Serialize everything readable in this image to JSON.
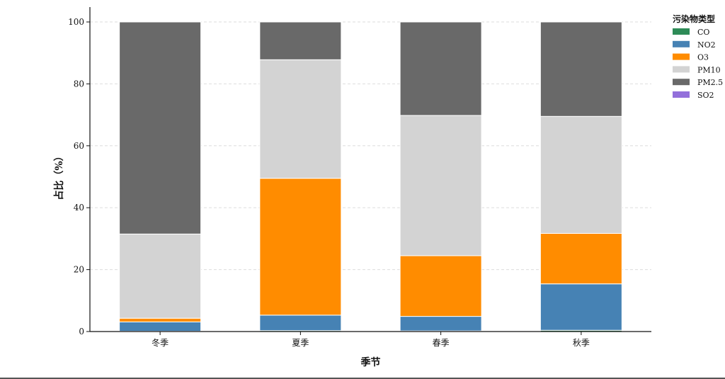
{
  "chart_data": {
    "type": "bar",
    "stacked": true,
    "title": "",
    "xlabel": "季节",
    "ylabel": "占比（%）",
    "categories": [
      "冬季",
      "夏季",
      "春季",
      "秋季"
    ],
    "ylim": [
      0,
      100
    ],
    "yticks": [
      0,
      20,
      40,
      60,
      80,
      100
    ],
    "grid": "horizontal dashed",
    "legend_title": "污染物类型",
    "legend_position": "top-right outside",
    "series": [
      {
        "name": "CO",
        "color": "#2e8b57",
        "values": [
          0.1,
          0.3,
          0.2,
          0.4
        ]
      },
      {
        "name": "NO2",
        "color": "#4682b4",
        "values": [
          3.0,
          5.0,
          4.7,
          15.0
        ]
      },
      {
        "name": "O3",
        "color": "#ff8c00",
        "values": [
          1.2,
          44.2,
          19.6,
          16.3
        ]
      },
      {
        "name": "PM10",
        "color": "#d3d3d3",
        "values": [
          27.2,
          38.3,
          45.3,
          37.8
        ]
      },
      {
        "name": "PM2.5",
        "color": "#696969",
        "values": [
          68.5,
          12.2,
          30.2,
          30.5
        ]
      },
      {
        "name": "SO2",
        "color": "#9370db",
        "values": [
          0.0,
          0.0,
          0.0,
          0.0
        ]
      }
    ]
  }
}
